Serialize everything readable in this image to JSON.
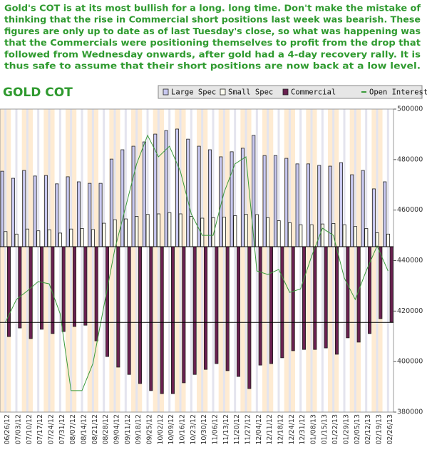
{
  "header": {
    "lines": [
      "Gold's COT is at its most bullish for a long. long time. Don't make the mistake of",
      "thinking that the rise in Commercial short positions last week was bearish. These",
      "figures are only up to date as of last Tuesday's close, so what was happening was",
      "that the Commercials were positioning themselves to profit from the drop that",
      "followed from Wednesday onwards, after gold had a 4-day recovery rally. It is",
      "thus safe to assume that their short positions are now back at a low level."
    ]
  },
  "chart_data": {
    "type": "bar",
    "title": "GOLD COT",
    "categories": [
      "06/26/12",
      "07/03/12",
      "07/10/12",
      "07/17/12",
      "07/24/12",
      "07/31/12",
      "08/07/12",
      "08/14/12",
      "08/21/12",
      "08/28/12",
      "09/04/12",
      "09/11/12",
      "09/18/12",
      "09/25/12",
      "10/02/12",
      "10/09/12",
      "10/16/12",
      "10/23/12",
      "10/30/12",
      "11/06/12",
      "11/13/12",
      "11/20/12",
      "11/27/12",
      "12/04/12",
      "12/11/12",
      "12/18/12",
      "12/24/12",
      "12/31/12",
      "01/08/13",
      "01/15/13",
      "01/22/13",
      "01/29/13",
      "02/05/13",
      "02/12/13",
      "02/19/13",
      "02/26/13"
    ],
    "series": [
      {
        "name": "Large Spec",
        "color": "#c8c8f0",
        "values": [
          475400,
          472600,
          475700,
          473500,
          473700,
          470400,
          473200,
          471200,
          470600,
          470600,
          480200,
          483900,
          485300,
          487000,
          490100,
          491500,
          492100,
          488100,
          485300,
          483900,
          481100,
          483100,
          484500,
          489600,
          481600,
          481600,
          480500,
          478300,
          478300,
          477700,
          477400,
          478800,
          474000,
          475700,
          468400,
          471200
        ]
      },
      {
        "name": "Small Spec",
        "color": "#fffff0",
        "values": [
          451500,
          450500,
          452500,
          451800,
          452200,
          450900,
          452500,
          452700,
          452300,
          454800,
          456200,
          456500,
          457500,
          458300,
          458500,
          459000,
          458500,
          457500,
          456800,
          457000,
          457200,
          457800,
          458300,
          458200,
          457000,
          455800,
          455000,
          454200,
          454200,
          454500,
          454700,
          454200,
          453500,
          452700,
          451000,
          450500
        ]
      },
      {
        "name": "Commercial",
        "color": "#6a2050",
        "values": [
          409900,
          413300,
          409100,
          412800,
          411100,
          411900,
          413900,
          414400,
          408200,
          402000,
          397800,
          394900,
          391300,
          388500,
          387300,
          387300,
          391600,
          394900,
          396900,
          399200,
          396400,
          394100,
          389300,
          398600,
          399200,
          401500,
          404300,
          404800,
          404800,
          405400,
          402900,
          409400,
          407700,
          411100,
          417000,
          415600
        ]
      },
      {
        "name": "Open Interest",
        "color": "#3a9a3a",
        "line": true,
        "values": [
          415600,
          424600,
          428000,
          431700,
          430800,
          419000,
          388500,
          388500,
          399200,
          421800,
          444400,
          461300,
          478300,
          489600,
          481100,
          485300,
          475400,
          458500,
          450000,
          450000,
          467000,
          478300,
          481100,
          435900,
          434500,
          436500,
          427400,
          428800,
          441600,
          452800,
          450000,
          433100,
          424600,
          435900,
          445800,
          435900
        ]
      }
    ],
    "zero_line": 445500,
    "reference_line": 415500,
    "ylim": [
      380000,
      500000
    ],
    "yticks": [
      380000,
      400000,
      420000,
      440000,
      460000,
      480000,
      500000
    ],
    "legend": "top-right"
  }
}
